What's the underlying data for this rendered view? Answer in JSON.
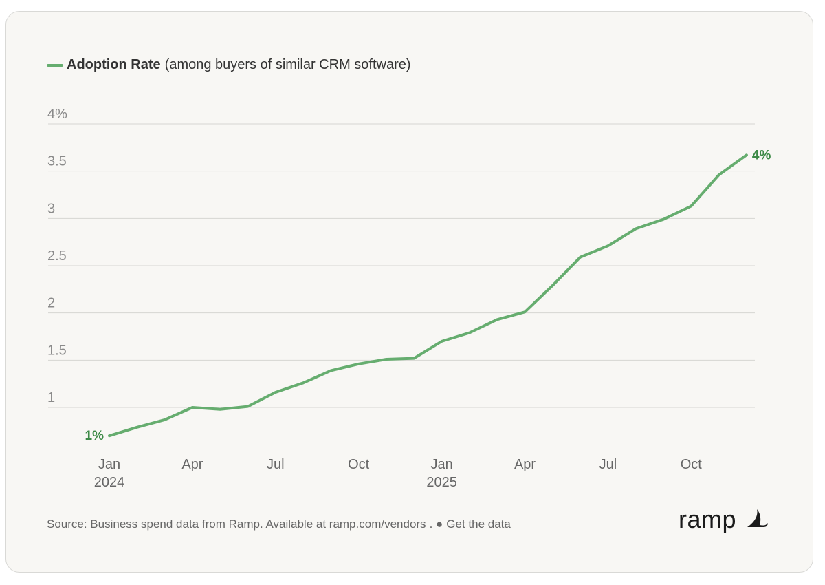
{
  "legend": {
    "series_name": "Adoption Rate",
    "description": "(among buyers of similar CRM software)",
    "color": "#66ad6f"
  },
  "chart_data": {
    "type": "line",
    "y_ticks": [
      {
        "value": 1,
        "label": "1"
      },
      {
        "value": 1.5,
        "label": "1.5"
      },
      {
        "value": 2,
        "label": "2"
      },
      {
        "value": 2.5,
        "label": "2.5"
      },
      {
        "value": 3,
        "label": "3"
      },
      {
        "value": 3.5,
        "label": "3.5"
      },
      {
        "value": 4,
        "label": "4%"
      }
    ],
    "x_ticks": [
      {
        "date": "2024-01",
        "lines": [
          "Jan",
          "2024"
        ]
      },
      {
        "date": "2024-04",
        "lines": [
          "Apr"
        ]
      },
      {
        "date": "2024-07",
        "lines": [
          "Jul"
        ]
      },
      {
        "date": "2024-10",
        "lines": [
          "Oct"
        ]
      },
      {
        "date": "2025-01",
        "lines": [
          "Jan",
          "2025"
        ]
      },
      {
        "date": "2025-04",
        "lines": [
          "Apr"
        ]
      },
      {
        "date": "2025-07",
        "lines": [
          "Jul"
        ]
      },
      {
        "date": "2025-10",
        "lines": [
          "Oct"
        ]
      }
    ],
    "x_range": [
      "2024-01",
      "2025-12"
    ],
    "ylim": [
      0.7,
      4.0
    ],
    "grid": true,
    "series": [
      {
        "name": "Adoption Rate",
        "color": "#66ad6f",
        "x": [
          "2024-01",
          "2024-02",
          "2024-03",
          "2024-04",
          "2024-05",
          "2024-06",
          "2024-07",
          "2024-08",
          "2024-09",
          "2024-10",
          "2024-11",
          "2024-12",
          "2025-01",
          "2025-02",
          "2025-03",
          "2025-04",
          "2025-05",
          "2025-06",
          "2025-07",
          "2025-08",
          "2025-09",
          "2025-10",
          "2025-11",
          "2025-12"
        ],
        "values": [
          0.7,
          0.79,
          0.87,
          1.0,
          0.98,
          1.01,
          1.16,
          1.26,
          1.39,
          1.46,
          1.51,
          1.52,
          1.7,
          1.79,
          1.93,
          2.01,
          2.29,
          2.59,
          2.71,
          2.89,
          2.99,
          3.13,
          3.46,
          3.67
        ]
      }
    ],
    "start_label": "1%",
    "end_label": "4%",
    "label_color": "#3d8a47"
  },
  "footer": {
    "prefix": "Source: Business spend data from ",
    "ramp_link": "Ramp",
    "mid": ". Available at ",
    "vendors_link": "ramp.com/vendors",
    "dot": ". ●",
    "data_link": "Get the data"
  },
  "brand": {
    "wordmark": "ramp"
  }
}
